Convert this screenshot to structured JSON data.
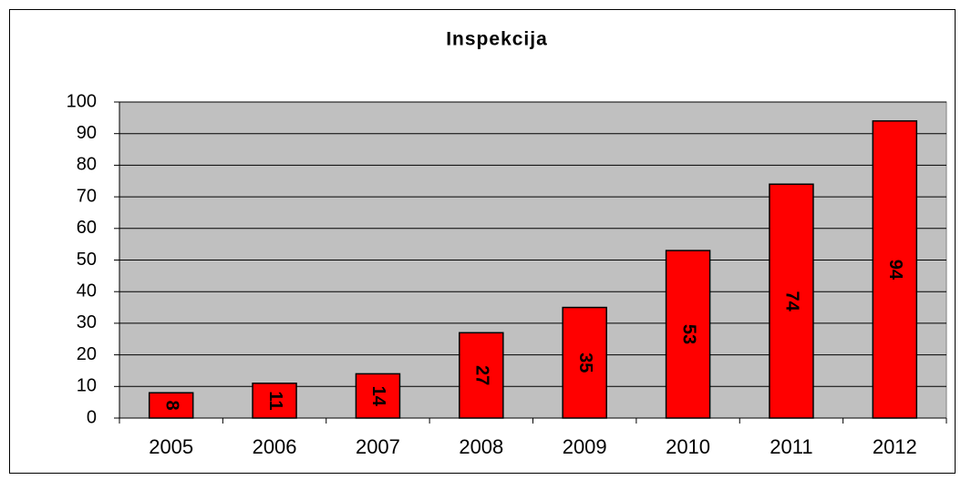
{
  "chart_data": {
    "type": "bar",
    "title": "Inspekcija",
    "categories": [
      "2005",
      "2006",
      "2007",
      "2008",
      "2009",
      "2010",
      "2011",
      "2012"
    ],
    "values": [
      8,
      11,
      14,
      27,
      35,
      53,
      74,
      94
    ],
    "color": "#ff0000",
    "ylim": [
      0,
      100
    ],
    "yticks": [
      0,
      10,
      20,
      30,
      40,
      50,
      60,
      70,
      80,
      90,
      100
    ],
    "grid": true
  }
}
